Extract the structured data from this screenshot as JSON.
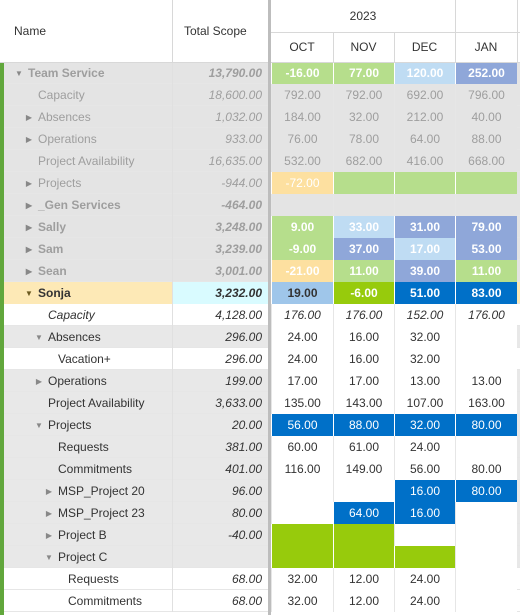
{
  "header": {
    "name_label": "Name",
    "scope_label": "Total Scope",
    "year": "2023",
    "months": [
      "OCT",
      "NOV",
      "DEC",
      "JAN"
    ]
  },
  "colors": {
    "dim_bg": "#e4e4e4",
    "selected_bg": "#fde9b6",
    "selected_scope_bg": "#d9fbff",
    "green_light": "#b6de8c",
    "green_bright": "#97cb0c",
    "orange_light": "#fde0a0",
    "blue_pale": "#bfdcf3",
    "blue_mid": "#8fa7d9",
    "blue_dark": "#0070c8",
    "accent_yellow": "#f2c744",
    "accent_green": "#61a73c"
  },
  "rows": [
    {
      "name": "Team Service",
      "scope": "13,790.00",
      "indent": 0,
      "toggle": "down",
      "bold": true,
      "dim": true,
      "bg": "#e4e4e4",
      "cells": [
        {
          "v": "-16.00",
          "c": "#b6de8c",
          "b": true
        },
        {
          "v": "77.00",
          "c": "#b6de8c",
          "b": true
        },
        {
          "v": "120.00",
          "c": "#bfdcf3",
          "b": true
        },
        {
          "v": "252.00",
          "c": "#8fa7d9",
          "b": true
        }
      ]
    },
    {
      "name": "Capacity",
      "scope": "18,600.00",
      "indent": 1,
      "toggle": "",
      "dim": true,
      "bg": "#e4e4e4",
      "cells": [
        {
          "v": "792.00"
        },
        {
          "v": "792.00"
        },
        {
          "v": "692.00"
        },
        {
          "v": "796.00"
        }
      ]
    },
    {
      "name": "Absences",
      "scope": "1,032.00",
      "indent": 1,
      "toggle": "right",
      "dim": true,
      "bg": "#e4e4e4",
      "cells": [
        {
          "v": "184.00"
        },
        {
          "v": "32.00"
        },
        {
          "v": "212.00"
        },
        {
          "v": "40.00"
        }
      ]
    },
    {
      "name": "Operations",
      "scope": "933.00",
      "indent": 1,
      "toggle": "right",
      "dim": true,
      "bg": "#e4e4e4",
      "cells": [
        {
          "v": "76.00"
        },
        {
          "v": "78.00"
        },
        {
          "v": "64.00"
        },
        {
          "v": "88.00"
        }
      ]
    },
    {
      "name": "Project Availability",
      "scope": "16,635.00",
      "indent": 1,
      "toggle": "",
      "dim": true,
      "bg": "#e4e4e4",
      "cells": [
        {
          "v": "532.00"
        },
        {
          "v": "682.00"
        },
        {
          "v": "416.00"
        },
        {
          "v": "668.00"
        }
      ]
    },
    {
      "name": "Projects",
      "scope": "-944.00",
      "indent": 1,
      "toggle": "right",
      "dim": true,
      "bg": "#e4e4e4",
      "cells": [
        {
          "v": "-72.00",
          "c": "#fde0a0"
        },
        {
          "v": "",
          "c": "#b6de8c"
        },
        {
          "v": "",
          "c": "#b6de8c"
        },
        {
          "v": "",
          "c": "#b6de8c"
        }
      ]
    },
    {
      "name": "_Gen Services",
      "scope": "-464.00",
      "indent": 1,
      "toggle": "right",
      "bold": true,
      "dim": true,
      "bg": "#e4e4e4",
      "cells": [
        {
          "v": ""
        },
        {
          "v": ""
        },
        {
          "v": ""
        },
        {
          "v": ""
        }
      ]
    },
    {
      "name": "Sally",
      "scope": "3,248.00",
      "indent": 1,
      "toggle": "right",
      "bold": true,
      "dim": true,
      "bg": "#e4e4e4",
      "cells": [
        {
          "v": "9.00",
          "c": "#b6de8c",
          "b": true
        },
        {
          "v": "33.00",
          "c": "#bfdcf3",
          "b": true
        },
        {
          "v": "31.00",
          "c": "#8fa7d9",
          "b": true
        },
        {
          "v": "79.00",
          "c": "#8fa7d9",
          "b": true
        }
      ]
    },
    {
      "name": "Sam",
      "scope": "3,239.00",
      "indent": 1,
      "toggle": "right",
      "bold": true,
      "dim": true,
      "bg": "#e4e4e4",
      "cells": [
        {
          "v": "-9.00",
          "c": "#b6de8c",
          "b": true
        },
        {
          "v": "37.00",
          "c": "#8fa7d9",
          "b": true
        },
        {
          "v": "17.00",
          "c": "#bfdcf3",
          "b": true
        },
        {
          "v": "53.00",
          "c": "#8fa7d9",
          "b": true
        }
      ]
    },
    {
      "name": "Sean",
      "scope": "3,001.00",
      "indent": 1,
      "toggle": "right",
      "bold": true,
      "dim": true,
      "bg": "#e4e4e4",
      "cells": [
        {
          "v": "-21.00",
          "c": "#fde0a0",
          "b": true
        },
        {
          "v": "11.00",
          "c": "#b6de8c",
          "b": true
        },
        {
          "v": "39.00",
          "c": "#8fa7d9",
          "b": true
        },
        {
          "v": "11.00",
          "c": "#b6de8c",
          "b": true
        }
      ]
    },
    {
      "name": "Sonja",
      "scope": "3,232.00",
      "indent": 1,
      "toggle": "down",
      "bold": true,
      "bg": "#fde9b6",
      "scopebg": "#d9fbff",
      "selected": true,
      "cells": [
        {
          "v": "19.00",
          "c": "#9fc6ea",
          "b": true
        },
        {
          "v": "-6.00",
          "c": "#97cb0c",
          "b": true,
          "w": true
        },
        {
          "v": "51.00",
          "c": "#0070c8",
          "b": true,
          "w": true
        },
        {
          "v": "83.00",
          "c": "#0070c8",
          "b": true,
          "w": true
        }
      ]
    },
    {
      "name": "Capacity",
      "scope": "4,128.00",
      "indent": 2,
      "toggle": "",
      "italic": true,
      "bg": "#ffffff",
      "cells": [
        {
          "v": "176.00",
          "i": true
        },
        {
          "v": "176.00",
          "i": true
        },
        {
          "v": "152.00",
          "i": true
        },
        {
          "v": "176.00",
          "i": true
        }
      ]
    },
    {
      "name": "Absences",
      "scope": "296.00",
      "indent": 2,
      "toggle": "down",
      "bg": "#e8e8e8",
      "cells": [
        {
          "v": "24.00"
        },
        {
          "v": "16.00"
        },
        {
          "v": "32.00"
        },
        {
          "v": ""
        }
      ]
    },
    {
      "name": "Vacation+",
      "scope": "296.00",
      "indent": 3,
      "toggle": "",
      "bg": "#ffffff",
      "cells": [
        {
          "v": "24.00"
        },
        {
          "v": "16.00"
        },
        {
          "v": "32.00"
        },
        {
          "v": ""
        }
      ]
    },
    {
      "name": "Operations",
      "scope": "199.00",
      "indent": 2,
      "toggle": "right",
      "bg": "#e8e8e8",
      "cells": [
        {
          "v": "17.00"
        },
        {
          "v": "17.00"
        },
        {
          "v": "13.00"
        },
        {
          "v": "13.00"
        }
      ]
    },
    {
      "name": "Project Availability",
      "scope": "3,633.00",
      "indent": 2,
      "toggle": "",
      "bg": "#e8e8e8",
      "cells": [
        {
          "v": "135.00"
        },
        {
          "v": "143.00"
        },
        {
          "v": "107.00"
        },
        {
          "v": "163.00"
        }
      ]
    },
    {
      "name": "Projects",
      "scope": "20.00",
      "indent": 2,
      "toggle": "down",
      "bg": "#e8e8e8",
      "cells": [
        {
          "v": "56.00",
          "c": "#0070c8",
          "w": true
        },
        {
          "v": "88.00",
          "c": "#0070c8",
          "w": true
        },
        {
          "v": "32.00",
          "c": "#0070c8",
          "w": true
        },
        {
          "v": "80.00",
          "c": "#0070c8",
          "w": true
        }
      ]
    },
    {
      "name": "Requests",
      "scope": "381.00",
      "indent": 3,
      "toggle": "",
      "bg": "#e8e8e8",
      "cells": [
        {
          "v": "60.00"
        },
        {
          "v": "61.00"
        },
        {
          "v": "24.00"
        },
        {
          "v": ""
        }
      ]
    },
    {
      "name": "Commitments",
      "scope": "401.00",
      "indent": 3,
      "toggle": "",
      "bg": "#e8e8e8",
      "cells": [
        {
          "v": "116.00"
        },
        {
          "v": "149.00"
        },
        {
          "v": "56.00"
        },
        {
          "v": "80.00"
        }
      ]
    },
    {
      "name": "MSP_Project 20",
      "scope": "96.00",
      "indent": 3,
      "toggle": "right",
      "bg": "#e8e8e8",
      "cells": [
        {
          "v": ""
        },
        {
          "v": ""
        },
        {
          "v": "16.00",
          "c": "#0070c8",
          "w": true
        },
        {
          "v": "80.00",
          "c": "#0070c8",
          "w": true
        }
      ]
    },
    {
      "name": "MSP_Project 23",
      "scope": "80.00",
      "indent": 3,
      "toggle": "right",
      "bg": "#e8e8e8",
      "cells": [
        {
          "v": ""
        },
        {
          "v": "64.00",
          "c": "#0070c8",
          "w": true
        },
        {
          "v": "16.00",
          "c": "#0070c8",
          "w": true
        },
        {
          "v": ""
        }
      ]
    },
    {
      "name": "Project B",
      "scope": "-40.00",
      "indent": 3,
      "toggle": "right",
      "bg": "#e8e8e8",
      "cells": [
        {
          "v": "",
          "c": "#97cb0c"
        },
        {
          "v": "",
          "c": "#97cb0c"
        },
        {
          "v": ""
        },
        {
          "v": ""
        }
      ]
    },
    {
      "name": "Project C",
      "scope": "",
      "indent": 3,
      "toggle": "down",
      "bg": "#e8e8e8",
      "cells": [
        {
          "v": "",
          "c": "#97cb0c"
        },
        {
          "v": "",
          "c": "#97cb0c"
        },
        {
          "v": "",
          "c": "#97cb0c"
        },
        {
          "v": ""
        }
      ]
    },
    {
      "name": "Requests",
      "scope": "68.00",
      "indent": 4,
      "toggle": "",
      "bg": "#ffffff",
      "cells": [
        {
          "v": "32.00"
        },
        {
          "v": "12.00"
        },
        {
          "v": "24.00"
        },
        {
          "v": ""
        }
      ]
    },
    {
      "name": "Commitments",
      "scope": "68.00",
      "indent": 4,
      "toggle": "",
      "bg": "#ffffff",
      "cells": [
        {
          "v": "32.00"
        },
        {
          "v": "12.00"
        },
        {
          "v": "24.00"
        },
        {
          "v": ""
        }
      ]
    }
  ]
}
